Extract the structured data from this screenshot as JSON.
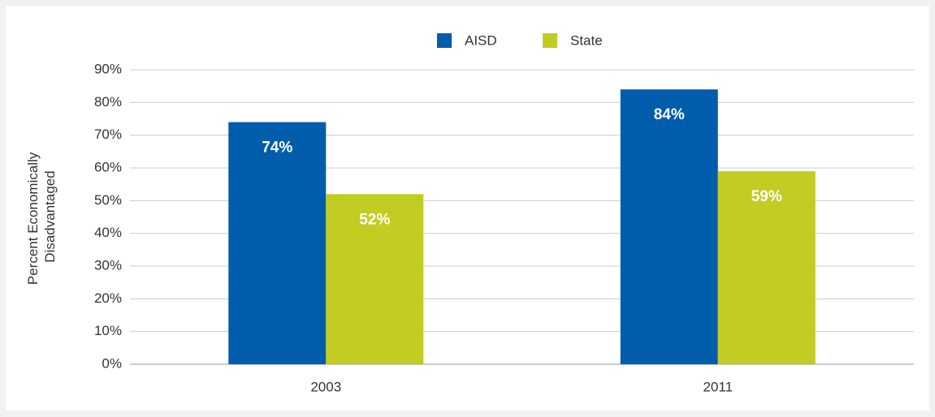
{
  "chart_data": {
    "type": "bar",
    "ylabel": [
      "Percent Economically",
      "Disadvantaged"
    ],
    "categories": [
      "2003",
      "2011"
    ],
    "series": [
      {
        "name": "AISD",
        "color": "#005dab",
        "values": [
          74,
          84
        ],
        "value_labels": [
          "74%",
          "84%"
        ]
      },
      {
        "name": "State",
        "color": "#c2cd23",
        "values": [
          52,
          59
        ],
        "value_labels": [
          "52%",
          "59%"
        ]
      }
    ],
    "ylim": [
      0,
      90
    ],
    "yticks": [
      {
        "value": 0,
        "label": "0%"
      },
      {
        "value": 10,
        "label": "10%"
      },
      {
        "value": 20,
        "label": "20%"
      },
      {
        "value": 30,
        "label": "30%"
      },
      {
        "value": 40,
        "label": "40%"
      },
      {
        "value": 50,
        "label": "50%"
      },
      {
        "value": 60,
        "label": "60%"
      },
      {
        "value": 70,
        "label": "70%"
      },
      {
        "value": 80,
        "label": "80%"
      },
      {
        "value": 90,
        "label": "90%"
      }
    ],
    "grid": true,
    "legend": "top"
  }
}
